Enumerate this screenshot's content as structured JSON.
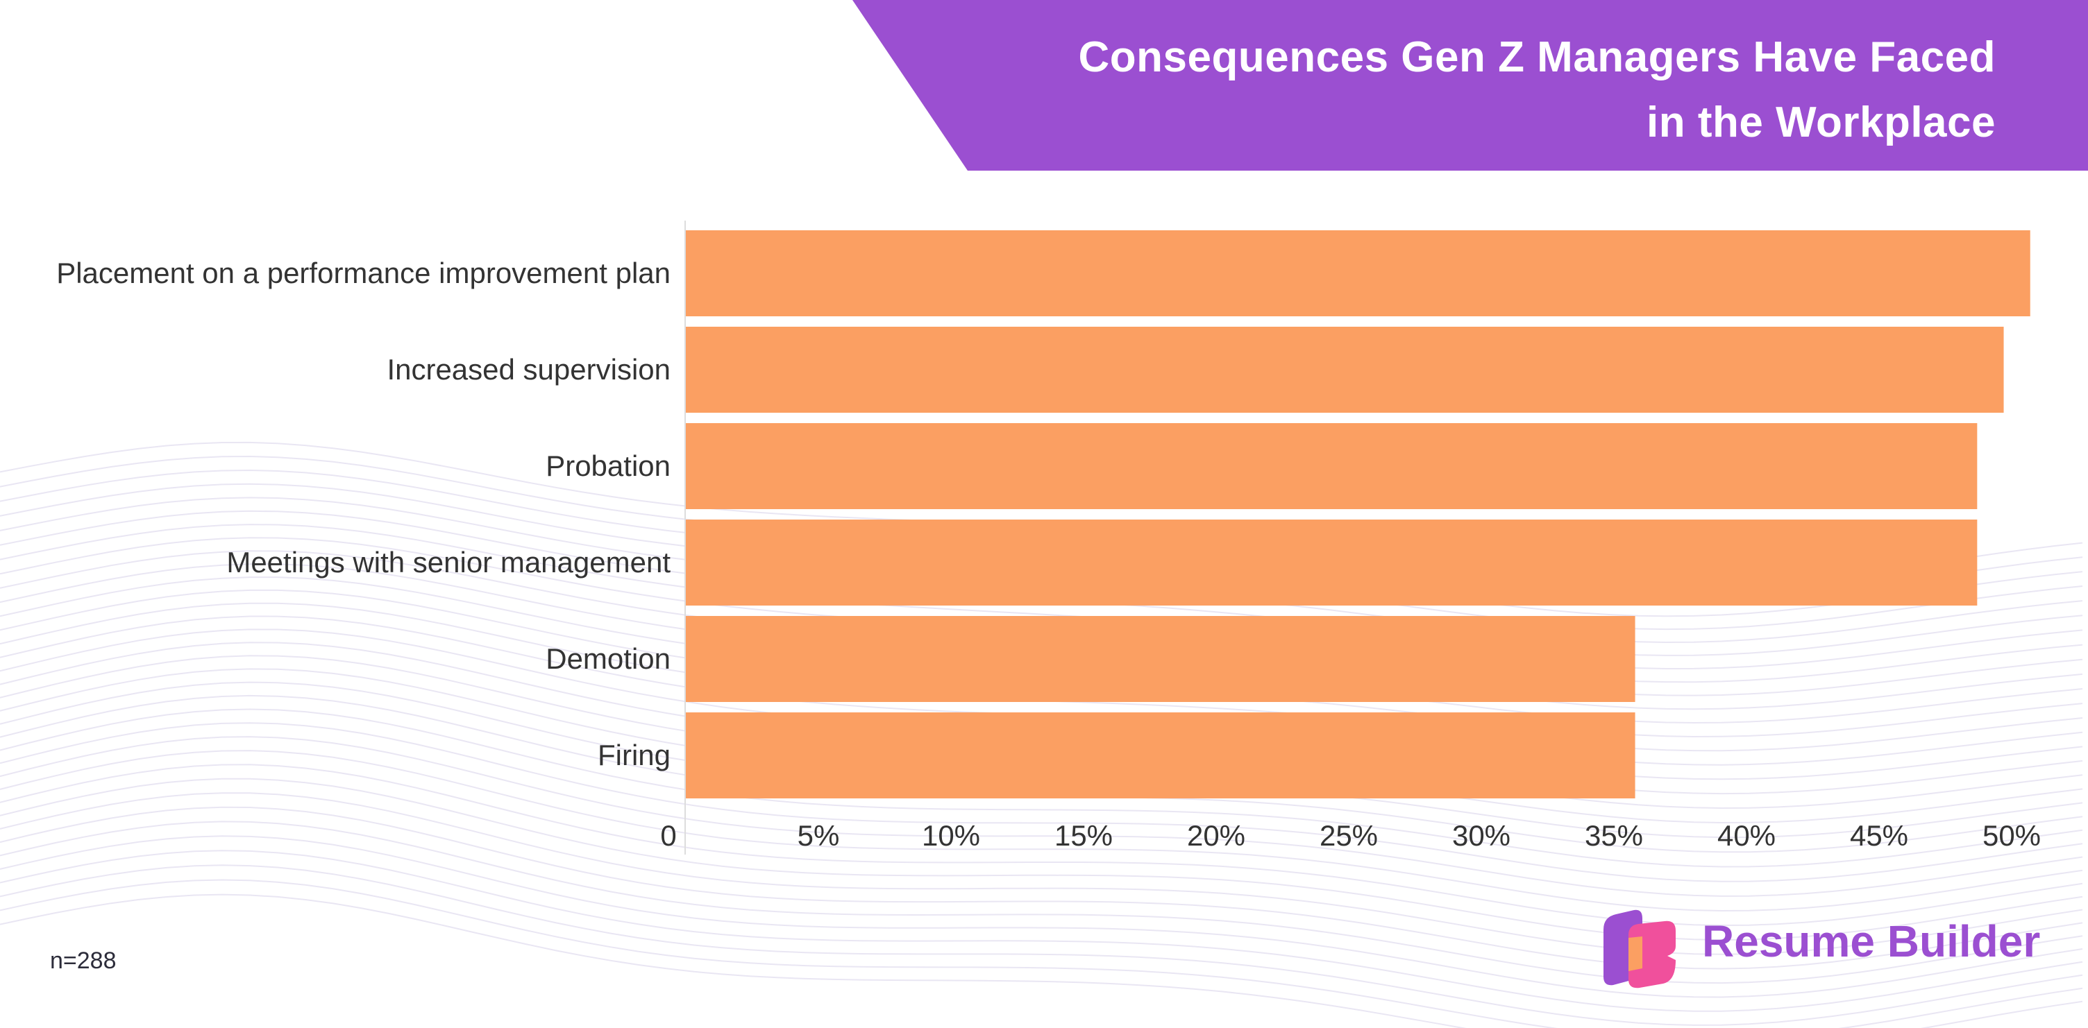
{
  "header": {
    "title_line1": "Consequences Gen Z Managers Have Faced",
    "title_line2": "in the Workplace"
  },
  "footer": {
    "sample_size": "n=288",
    "brand_name": "Resume Builder"
  },
  "colors": {
    "banner": "#9b4fd1",
    "bar": "#fb9f62",
    "brand_text": "#9b4fd1"
  },
  "chart_data": {
    "type": "bar",
    "orientation": "horizontal",
    "title": "Consequences Gen Z Managers Have Faced in the Workplace",
    "categories": [
      "Placement on a performance improvement plan",
      "Increased supervision",
      "Probation",
      "Meetings with senior management",
      "Demotion",
      "Firing"
    ],
    "values": [
      50.7,
      49.7,
      48.7,
      48.7,
      35.8,
      35.8
    ],
    "unit": "%",
    "xlim": [
      0,
      50
    ],
    "x_ticks": [
      0,
      5,
      10,
      15,
      20,
      25,
      30,
      35,
      40,
      45,
      50
    ],
    "x_tick_labels": [
      "0",
      "5%",
      "10%",
      "15%",
      "20%",
      "25%",
      "30%",
      "35%",
      "40%",
      "45%",
      "50%"
    ],
    "xlabel": "",
    "ylabel": "",
    "grid": false,
    "legend": "none"
  }
}
